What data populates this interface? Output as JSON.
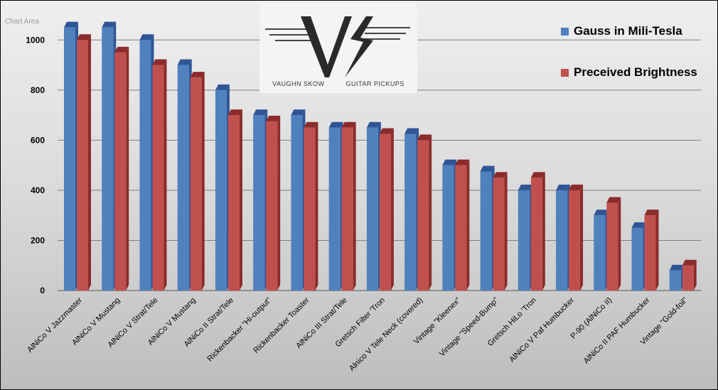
{
  "chart_area_label": "Chart Area",
  "logo": {
    "text_left": "VAUGHN SKOW",
    "text_right": "GUITAR  PICKUPS"
  },
  "colors": {
    "series1": "#4f81bd",
    "series1_dark": "#2f5597",
    "series2": "#c0504d",
    "series2_dark": "#8b2b2b"
  },
  "chart_data": {
    "type": "bar",
    "title": "",
    "xlabel": "",
    "ylabel": "",
    "ylim": [
      0,
      1100
    ],
    "yticks": [
      0,
      200,
      400,
      600,
      800,
      1000
    ],
    "grid": true,
    "legend_position": "top-right",
    "categories": [
      "AlNiCo V Jazzmaster",
      "AlNiCo V Mustang",
      "AlNiCo V Strat/Tele",
      "AlNiCo V Mustang",
      "AlNiCo II Strat/Tele",
      "Rickenbacker \"Hi-output\"",
      "Rickenbacker Toaster",
      "AlNiCo III Strat/Tele",
      "Gretsch Filter 'Tron",
      "Alnico V Tele Neck (covered)",
      "Vintage \"Kleenex\"",
      "Vintage \"Speed-Bump\"",
      "Gretsch HiLo 'Tron",
      "AlNiCo V Paf Humbucker",
      "P-90 (AlNiCo II)",
      "AlNiCo II PAF Humbucker",
      "Vintage \"Gold-foil\""
    ],
    "series": [
      {
        "name": "Gauss in Mili-Tesla",
        "values": [
          1050,
          1050,
          1000,
          900,
          800,
          700,
          700,
          650,
          650,
          625,
          500,
          475,
          400,
          400,
          300,
          250,
          80
        ]
      },
      {
        "name": "Preceived Brightness",
        "values": [
          1000,
          950,
          900,
          850,
          700,
          675,
          650,
          650,
          625,
          600,
          500,
          450,
          450,
          400,
          350,
          300,
          100
        ]
      }
    ]
  }
}
